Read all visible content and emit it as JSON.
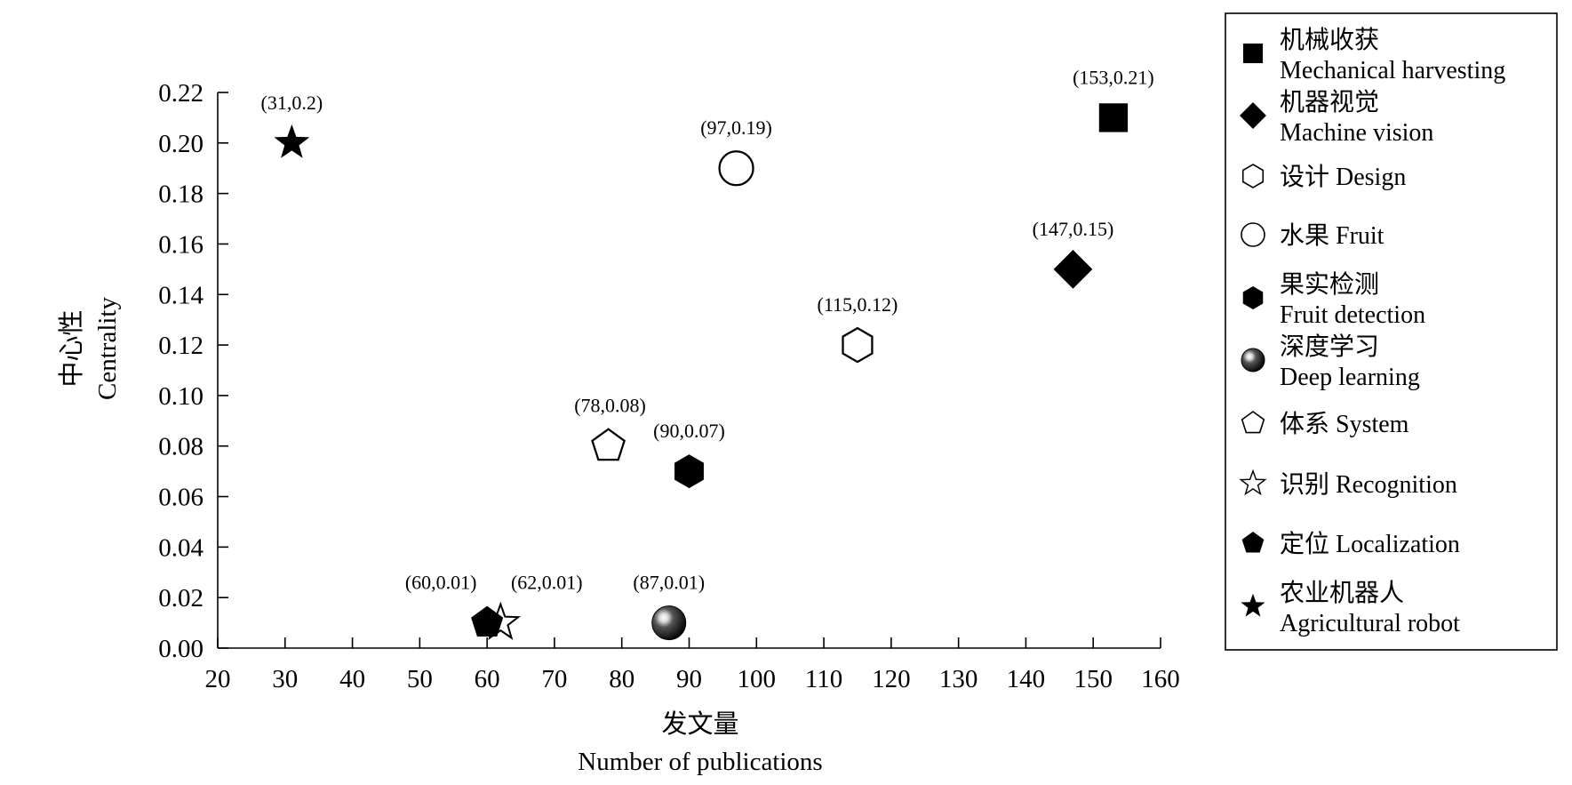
{
  "chart_data": {
    "type": "scatter",
    "title": "",
    "xlabel_cn": "发文量",
    "xlabel_en": "Number of publications",
    "ylabel_cn": "中心性",
    "ylabel_en": "Centrality",
    "xlim": [
      20,
      160
    ],
    "ylim": [
      0,
      0.22
    ],
    "x_ticks": [
      "20",
      "30",
      "40",
      "50",
      "60",
      "70",
      "80",
      "90",
      "100",
      "110",
      "120",
      "130",
      "140",
      "150",
      "160"
    ],
    "y_ticks": [
      "0.00",
      "0.02",
      "0.04",
      "0.06",
      "0.08",
      "0.10",
      "0.12",
      "0.14",
      "0.16",
      "0.18",
      "0.20",
      "0.22"
    ],
    "grid": false,
    "legend_position": "right",
    "points": [
      {
        "name_cn": "机械收获",
        "name_en": "Mechanical harvesting",
        "x": 153,
        "y": 0.21,
        "label": "(153,0.21)",
        "marker": "square-filled-icon"
      },
      {
        "name_cn": "机器视觉",
        "name_en": "Machine vision",
        "x": 147,
        "y": 0.15,
        "label": "(147,0.15)",
        "marker": "diamond-filled-icon"
      },
      {
        "name_cn": "设计",
        "name_en": "Design",
        "x": 115,
        "y": 0.12,
        "label": "(115,0.12)",
        "marker": "hexagon-open-icon"
      },
      {
        "name_cn": "水果",
        "name_en": "Fruit",
        "x": 97,
        "y": 0.19,
        "label": "(97,0.19)",
        "marker": "circle-open-icon"
      },
      {
        "name_cn": "果实检测",
        "name_en": "Fruit detection",
        "x": 90,
        "y": 0.07,
        "label": "(90,0.07)",
        "marker": "hexagon-filled-icon"
      },
      {
        "name_cn": "深度学习",
        "name_en": "Deep learning",
        "x": 87,
        "y": 0.01,
        "label": "(87,0.01)",
        "marker": "sphere-icon"
      },
      {
        "name_cn": "体系",
        "name_en": "System",
        "x": 78,
        "y": 0.08,
        "label": "(78,0.08)",
        "marker": "pentagon-open-icon"
      },
      {
        "name_cn": "识别",
        "name_en": "Recognition",
        "x": 62,
        "y": 0.01,
        "label": "(62,0.01)",
        "marker": "star-open-icon"
      },
      {
        "name_cn": "定位",
        "name_en": "Localization",
        "x": 60,
        "y": 0.01,
        "label": "(60,0.01)",
        "marker": "pentagon-filled-icon"
      },
      {
        "name_cn": "农业机器人",
        "name_en": "Agricultural robot",
        "x": 31,
        "y": 0.2,
        "label": "(31,0.2)",
        "marker": "star-filled-icon"
      }
    ],
    "legend": [
      {
        "line1": "机械收获",
        "line2": "Mechanical harvesting",
        "marker": "square-filled-icon"
      },
      {
        "line1": "机器视觉",
        "line2": "Machine vision",
        "marker": "diamond-filled-icon"
      },
      {
        "line1": "设计 Design",
        "line2": "",
        "marker": "hexagon-open-icon"
      },
      {
        "line1": "水果 Fruit",
        "line2": "",
        "marker": "circle-open-icon"
      },
      {
        "line1": "果实检测",
        "line2": "Fruit detection",
        "marker": "hexagon-filled-icon"
      },
      {
        "line1": "深度学习",
        "line2": "Deep learning",
        "marker": "sphere-icon"
      },
      {
        "line1": "体系 System",
        "line2": "",
        "marker": "pentagon-open-icon"
      },
      {
        "line1": "识别 Recognition",
        "line2": "",
        "marker": "star-open-icon"
      },
      {
        "line1": "定位 Localization",
        "line2": "",
        "marker": "pentagon-filled-icon"
      },
      {
        "line1": "农业机器人",
        "line2": "Agricultural robot",
        "marker": "star-filled-icon"
      }
    ]
  }
}
